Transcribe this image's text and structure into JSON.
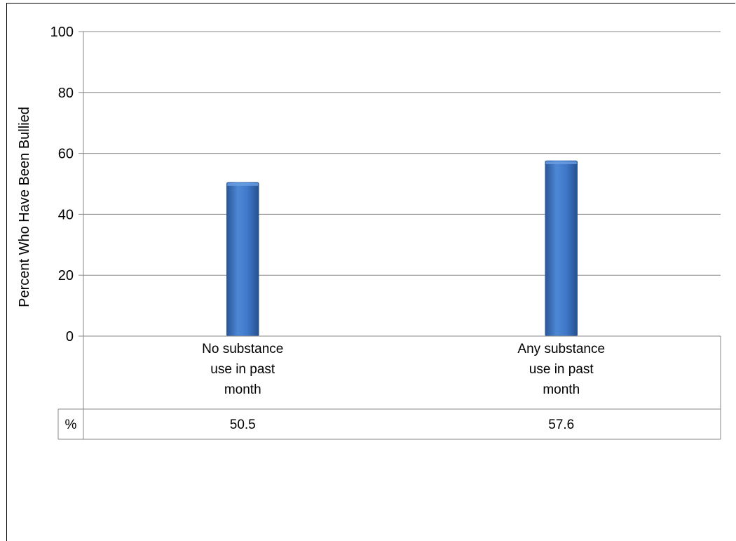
{
  "header": {
    "text": ""
  },
  "chart_data": {
    "type": "bar",
    "title": "",
    "xlabel": "",
    "ylabel": "Percent Who Have Been Bullied",
    "ylim": [
      0,
      100
    ],
    "yticks": [
      "0",
      "20",
      "40",
      "60",
      "80",
      "100"
    ],
    "categories": [
      "No substance use in past month",
      "Any substance use in past month"
    ],
    "category_lines": [
      [
        "No substance",
        "use in past",
        "month"
      ],
      [
        "Any substance",
        "use in past",
        "month"
      ]
    ],
    "series": [
      {
        "name": "%",
        "values": [
          50.5,
          57.6
        ]
      }
    ],
    "data_table": {
      "row_label": "%",
      "values": [
        "50.5",
        "57.6"
      ]
    },
    "grid": true,
    "colors": {
      "bar": "#3f78c8",
      "bar_dark": "#2c5a9e",
      "grid": "#878787"
    }
  }
}
